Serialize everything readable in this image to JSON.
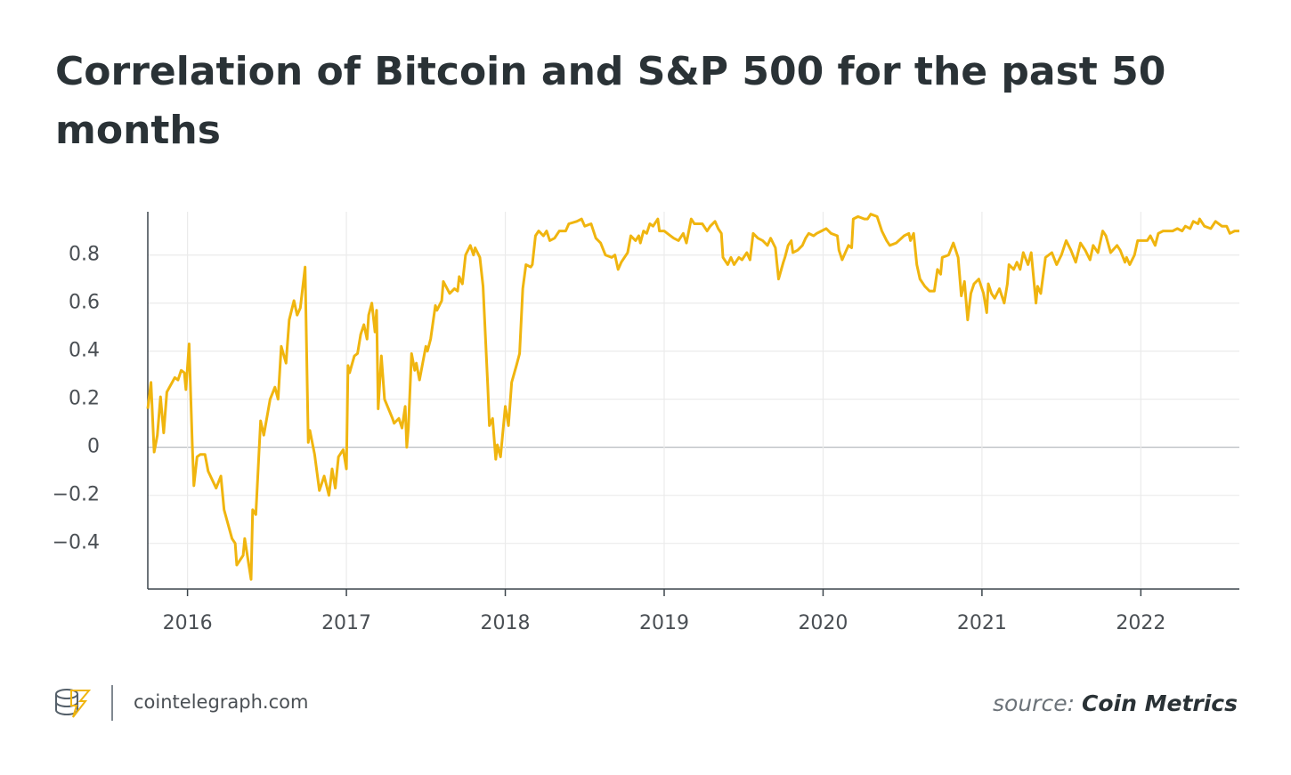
{
  "chart_data": {
    "type": "line",
    "title": "Correlation of Bitcoin and S&P 500 for the past 50 months",
    "site": "cointelegraph.com",
    "source_label": "source:",
    "source": "Coin Metrics",
    "color": "#f0b50f",
    "grid": true,
    "xlim": [
      2015.75,
      2022.62
    ],
    "xticks": [
      2016,
      2017,
      2018,
      2019,
      2020,
      2021,
      2022
    ],
    "ylim": [
      -0.59,
      0.98
    ],
    "yticks": [
      {
        "value": -0.4,
        "label": "−0.4"
      },
      {
        "value": -0.2,
        "label": "−0.2"
      },
      0,
      0.2,
      0.4,
      0.6,
      0.8
    ],
    "x": [
      2015.75,
      2015.77,
      2015.79,
      2015.81,
      2015.83,
      2015.85,
      2015.87,
      2015.92,
      2015.94,
      2015.96,
      2015.98,
      2015.99,
      2016.01,
      2016.03,
      2016.04,
      2016.06,
      2016.08,
      2016.11,
      2016.13,
      2016.18,
      2016.21,
      2016.23,
      2016.28,
      2016.3,
      2016.31,
      2016.35,
      2016.36,
      2016.4,
      2016.41,
      2016.43,
      2016.46,
      2016.48,
      2016.52,
      2016.55,
      2016.57,
      2016.59,
      2016.62,
      2016.64,
      2016.67,
      2016.69,
      2016.71,
      2016.74,
      2016.76,
      2016.77,
      2016.8,
      2016.83,
      2016.86,
      2016.89,
      2016.91,
      2016.93,
      2016.95,
      2016.98,
      2017.0,
      2017.01,
      2017.02,
      2017.05,
      2017.07,
      2017.09,
      2017.11,
      2017.13,
      2017.14,
      2017.16,
      2017.18,
      2017.19,
      2017.2,
      2017.22,
      2017.24,
      2017.29,
      2017.3,
      2017.33,
      2017.35,
      2017.37,
      2017.38,
      2017.39,
      2017.41,
      2017.43,
      2017.44,
      2017.46,
      2017.5,
      2017.51,
      2017.53,
      2017.56,
      2017.57,
      2017.6,
      2017.61,
      2017.65,
      2017.68,
      2017.7,
      2017.71,
      2017.73,
      2017.75,
      2017.78,
      2017.8,
      2017.81,
      2017.84,
      2017.86,
      2017.89,
      2017.9,
      2017.92,
      2017.94,
      2017.95,
      2017.97,
      2018.0,
      2018.02,
      2018.04,
      2018.07,
      2018.09,
      2018.11,
      2018.13,
      2018.16,
      2018.17,
      2018.19,
      2018.21,
      2018.24,
      2018.26,
      2018.28,
      2018.31,
      2018.34,
      2018.38,
      2018.4,
      2018.45,
      2018.48,
      2018.5,
      2018.54,
      2018.57,
      2018.6,
      2018.63,
      2018.67,
      2018.69,
      2018.71,
      2018.73,
      2018.77,
      2018.79,
      2018.82,
      2018.84,
      2018.85,
      2018.87,
      2018.89,
      2018.91,
      2018.93,
      2018.96,
      2018.97,
      2019.0,
      2019.04,
      2019.06,
      2019.09,
      2019.12,
      2019.14,
      2019.17,
      2019.19,
      2019.24,
      2019.27,
      2019.29,
      2019.32,
      2019.34,
      2019.36,
      2019.37,
      2019.4,
      2019.42,
      2019.44,
      2019.47,
      2019.49,
      2019.52,
      2019.54,
      2019.56,
      2019.59,
      2019.62,
      2019.65,
      2019.67,
      2019.7,
      2019.72,
      2019.75,
      2019.76,
      2019.78,
      2019.8,
      2019.81,
      2019.84,
      2019.87,
      2019.89,
      2019.91,
      2019.94,
      2019.96,
      2019.99,
      2020.02,
      2020.05,
      2020.09,
      2020.1,
      2020.12,
      2020.16,
      2020.18,
      2020.19,
      2020.22,
      2020.26,
      2020.28,
      2020.3,
      2020.34,
      2020.37,
      2020.4,
      2020.42,
      2020.46,
      2020.51,
      2020.54,
      2020.55,
      2020.57,
      2020.59,
      2020.61,
      2020.64,
      2020.67,
      2020.7,
      2020.72,
      2020.74,
      2020.75,
      2020.79,
      2020.82,
      2020.85,
      2020.87,
      2020.88,
      2020.89,
      2020.91,
      2020.93,
      2020.95,
      2020.98,
      2021.01,
      2021.03,
      2021.04,
      2021.06,
      2021.08,
      2021.11,
      2021.14,
      2021.16,
      2021.17,
      2021.2,
      2021.22,
      2021.24,
      2021.26,
      2021.29,
      2021.31,
      2021.34,
      2021.35,
      2021.37,
      2021.4,
      2021.44,
      2021.47,
      2021.5,
      2021.53,
      2021.56,
      2021.59,
      2021.62,
      2021.65,
      2021.68,
      2021.7,
      2021.73,
      2021.76,
      2021.78,
      2021.81,
      2021.85,
      2021.87,
      2021.9,
      2021.91,
      2021.93,
      2021.96,
      2021.98,
      2022.01,
      2022.04,
      2022.06,
      2022.09,
      2022.11,
      2022.14,
      2022.17,
      2022.2,
      2022.23,
      2022.26,
      2022.28,
      2022.31,
      2022.33,
      2022.36,
      2022.37,
      2022.4,
      2022.44,
      2022.47,
      2022.51,
      2022.54,
      2022.56,
      2022.59,
      2022.62
    ],
    "values": [
      0.16,
      0.27,
      -0.02,
      0.05,
      0.21,
      0.06,
      0.23,
      0.29,
      0.28,
      0.32,
      0.31,
      0.24,
      0.43,
      0.01,
      -0.16,
      -0.04,
      -0.03,
      -0.03,
      -0.1,
      -0.17,
      -0.12,
      -0.26,
      -0.38,
      -0.4,
      -0.49,
      -0.45,
      -0.38,
      -0.55,
      -0.26,
      -0.28,
      0.11,
      0.05,
      0.2,
      0.25,
      0.2,
      0.42,
      0.35,
      0.53,
      0.61,
      0.55,
      0.58,
      0.75,
      0.02,
      0.07,
      -0.03,
      -0.18,
      -0.12,
      -0.2,
      -0.09,
      -0.17,
      -0.04,
      -0.01,
      -0.09,
      0.34,
      0.31,
      0.38,
      0.39,
      0.47,
      0.51,
      0.45,
      0.55,
      0.6,
      0.48,
      0.57,
      0.16,
      0.38,
      0.2,
      0.12,
      0.1,
      0.12,
      0.08,
      0.17,
      0.0,
      0.08,
      0.39,
      0.32,
      0.35,
      0.28,
      0.42,
      0.4,
      0.45,
      0.59,
      0.57,
      0.61,
      0.69,
      0.64,
      0.66,
      0.65,
      0.71,
      0.68,
      0.8,
      0.84,
      0.8,
      0.83,
      0.79,
      0.67,
      0.25,
      0.09,
      0.12,
      -0.05,
      0.01,
      -0.04,
      0.17,
      0.09,
      0.27,
      0.34,
      0.39,
      0.66,
      0.76,
      0.75,
      0.76,
      0.88,
      0.9,
      0.88,
      0.9,
      0.86,
      0.87,
      0.9,
      0.9,
      0.93,
      0.94,
      0.95,
      0.92,
      0.93,
      0.87,
      0.85,
      0.8,
      0.79,
      0.8,
      0.74,
      0.77,
      0.81,
      0.88,
      0.86,
      0.88,
      0.85,
      0.9,
      0.89,
      0.93,
      0.92,
      0.95,
      0.9,
      0.9,
      0.88,
      0.87,
      0.86,
      0.89,
      0.85,
      0.95,
      0.93,
      0.93,
      0.9,
      0.92,
      0.94,
      0.91,
      0.89,
      0.79,
      0.76,
      0.79,
      0.76,
      0.79,
      0.78,
      0.81,
      0.78,
      0.89,
      0.87,
      0.86,
      0.84,
      0.87,
      0.83,
      0.7,
      0.77,
      0.79,
      0.84,
      0.86,
      0.81,
      0.82,
      0.84,
      0.87,
      0.89,
      0.88,
      0.89,
      0.9,
      0.91,
      0.89,
      0.88,
      0.82,
      0.78,
      0.84,
      0.83,
      0.95,
      0.96,
      0.95,
      0.95,
      0.97,
      0.96,
      0.9,
      0.86,
      0.84,
      0.85,
      0.88,
      0.89,
      0.86,
      0.89,
      0.76,
      0.7,
      0.67,
      0.65,
      0.65,
      0.74,
      0.72,
      0.79,
      0.8,
      0.85,
      0.79,
      0.63,
      0.66,
      0.69,
      0.53,
      0.64,
      0.68,
      0.7,
      0.64,
      0.56,
      0.68,
      0.64,
      0.62,
      0.66,
      0.6,
      0.68,
      0.76,
      0.74,
      0.77,
      0.74,
      0.81,
      0.76,
      0.81,
      0.6,
      0.67,
      0.64,
      0.79,
      0.81,
      0.76,
      0.8,
      0.86,
      0.82,
      0.77,
      0.85,
      0.82,
      0.78,
      0.84,
      0.81,
      0.9,
      0.88,
      0.81,
      0.84,
      0.82,
      0.77,
      0.79,
      0.76,
      0.8,
      0.86,
      0.86,
      0.86,
      0.88,
      0.84,
      0.89,
      0.9,
      0.9,
      0.9,
      0.91,
      0.9,
      0.92,
      0.91,
      0.94,
      0.93,
      0.95,
      0.92,
      0.91,
      0.94,
      0.92,
      0.92,
      0.89,
      0.9,
      0.9
    ]
  }
}
